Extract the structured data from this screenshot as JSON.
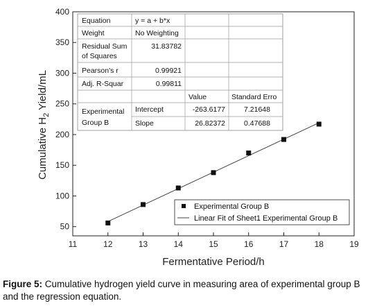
{
  "chart_data": {
    "type": "scatter",
    "xlabel": "Fermentative Period/h",
    "ylabel_parts": [
      "Cumulative H",
      "2",
      " Yield/mL"
    ],
    "xlim": [
      11,
      19
    ],
    "ylim": [
      35,
      400
    ],
    "x_ticks": [
      "11",
      "12",
      "13",
      "14",
      "15",
      "16",
      "17",
      "18",
      "19"
    ],
    "y_ticks": [
      "50",
      "100",
      "150",
      "200",
      "250",
      "300",
      "350",
      "400"
    ],
    "series": [
      {
        "name": "Experimental Group B",
        "marker": "square",
        "x": [
          12,
          13,
          14,
          15,
          16,
          17,
          18
        ],
        "y": [
          56,
          86,
          113,
          138,
          170,
          192,
          217
        ]
      }
    ],
    "fit": {
      "name": "Linear Fit of Sheet1 Experimental Group B",
      "intercept": -263.6177,
      "slope": 26.82372,
      "x_range": [
        11.95,
        18.05
      ]
    },
    "legend_position": "bottom-right"
  },
  "table": {
    "equation_label": "Equation",
    "equation_value": "y = a + b*x",
    "weight_label": "Weight",
    "weight_value": "No Weighting",
    "rss_label_1": "Residual Sum",
    "rss_label_2": "of Squares",
    "rss_value": "31.83782",
    "pearson_label": "Pearson's r",
    "pearson_value": "0.99921",
    "adjr_label": "Adj. R-Squar",
    "adjr_value": "0.99811",
    "col_value": "Value",
    "col_stderr": "Standard Erro",
    "group_label_1": "Experimental",
    "group_label_2": "Group B",
    "intercept_label": "Intercept",
    "intercept_value": "-263.6177",
    "intercept_err": "7.21648",
    "slope_label": "Slope",
    "slope_value": "26.82372",
    "slope_err": "0.47688"
  },
  "caption": {
    "label": "Figure 5:",
    "text": " Cumulative hydrogen yield curve in measuring area of experimental group B and the regression equation."
  }
}
